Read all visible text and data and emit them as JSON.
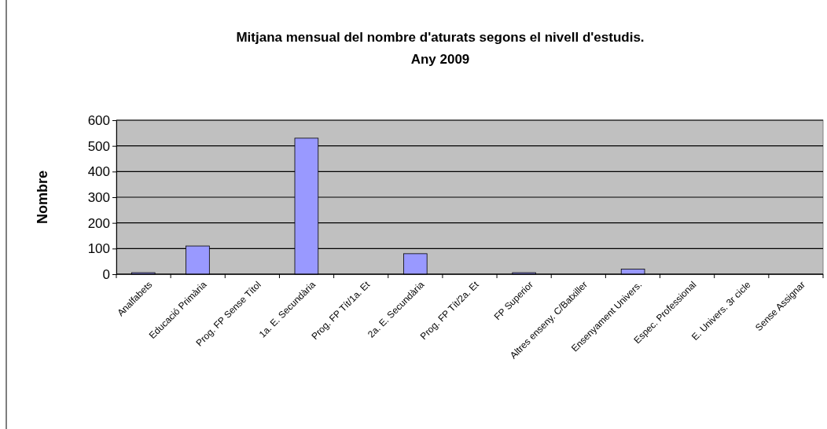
{
  "chart_data": {
    "type": "bar",
    "title": "Mitjana mensual del nombre d'aturats segons el nivell d'estudis.\nAny 2009",
    "ylabel": "Nombre",
    "categories": [
      "Analfabets",
      "Educació Primària",
      "Prog. FP Sense Títol",
      "1a. E. Secundària",
      "Prog. FP Tít/1a. Et",
      "2a. E. Secundària",
      "Prog. FP Tít/2a. Et",
      "FP Superior",
      "Altres enseny. C/Batxiller",
      "Ensenyament Univers.",
      "Espec. Professional",
      "E. Univers. 3r cicle",
      "Sense Assignar"
    ],
    "values": [
      6,
      110,
      0,
      530,
      0,
      80,
      0,
      6,
      0,
      20,
      0,
      0,
      0
    ],
    "color": "#9999ff",
    "ylim": [
      0,
      600
    ],
    "yticks": [
      0,
      100,
      200,
      300,
      400,
      500,
      600
    ],
    "grid": "y"
  }
}
